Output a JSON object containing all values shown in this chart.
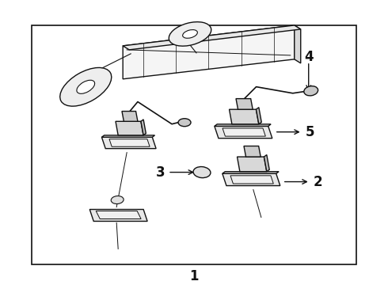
{
  "background_color": "#ffffff",
  "line_color": "#111111",
  "label_color": "#111111",
  "fig_width": 4.9,
  "fig_height": 3.6,
  "dpi": 100,
  "label_fontsize": 11,
  "border": [
    0.08,
    0.09,
    0.84,
    0.84
  ]
}
